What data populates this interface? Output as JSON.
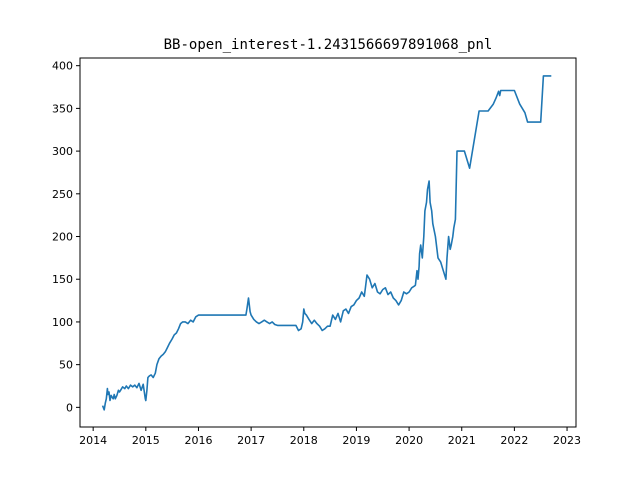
{
  "chart_data": {
    "type": "line",
    "title": "BB-open_interest-1.2431566697891068_pnl",
    "xlabel": "",
    "ylabel": "",
    "x_ticks": [
      "2014",
      "2015",
      "2016",
      "2017",
      "2018",
      "2019",
      "2020",
      "2021",
      "2022",
      "2023"
    ],
    "y_ticks": [
      "0",
      "50",
      "100",
      "150",
      "200",
      "250",
      "300",
      "350",
      "400"
    ],
    "xlim": [
      2013.75,
      2023.17
    ],
    "ylim": [
      -23,
      409
    ],
    "grid": false,
    "legend": "none",
    "line_color": "#1f77b4",
    "series": [
      {
        "x": [
          2014.18,
          2014.21,
          2014.23,
          2014.25,
          2014.27,
          2014.28,
          2014.3,
          2014.32,
          2014.34,
          2014.36,
          2014.38,
          2014.4,
          2014.42,
          2014.45,
          2014.48,
          2014.5,
          2014.53,
          2014.56,
          2014.6,
          2014.63,
          2014.67,
          2014.71,
          2014.75,
          2014.79,
          2014.83,
          2014.87,
          2014.91,
          2014.95,
          2014.99,
          2015.0,
          2015.02,
          2015.04,
          2015.07,
          2015.1,
          2015.14,
          2015.18,
          2015.21,
          2015.25,
          2015.29,
          2015.33,
          2015.37,
          2015.41,
          2015.45,
          2015.5,
          2015.54,
          2015.58,
          2015.62,
          2015.66,
          2015.7,
          2015.75,
          2015.8,
          2015.85,
          2015.9,
          2015.95,
          2016.0,
          2016.05,
          2016.9,
          2016.92,
          2016.95,
          2016.98,
          2017.0,
          2017.05,
          2017.1,
          2017.15,
          2017.2,
          2017.25,
          2017.3,
          2017.35,
          2017.4,
          2017.45,
          2017.5,
          2017.55,
          2017.6,
          2017.65,
          2017.7,
          2017.75,
          2017.8,
          2017.85,
          2017.9,
          2017.95,
          2017.98,
          2018.0,
          2018.02,
          2018.05,
          2018.1,
          2018.15,
          2018.2,
          2018.25,
          2018.3,
          2018.35,
          2018.4,
          2018.45,
          2018.5,
          2018.55,
          2018.6,
          2018.65,
          2018.7,
          2018.75,
          2018.8,
          2018.85,
          2018.9,
          2018.95,
          2019.0,
          2019.05,
          2019.1,
          2019.15,
          2019.17,
          2019.2,
          2019.25,
          2019.3,
          2019.35,
          2019.4,
          2019.45,
          2019.5,
          2019.55,
          2019.6,
          2019.65,
          2019.7,
          2019.75,
          2019.8,
          2019.85,
          2019.9,
          2019.95,
          2020.0,
          2020.05,
          2020.1,
          2020.12,
          2020.15,
          2020.17,
          2020.19,
          2020.2,
          2020.22,
          2020.25,
          2020.28,
          2020.3,
          2020.33,
          2020.35,
          2020.38,
          2020.4,
          2020.43,
          2020.45,
          2020.5,
          2020.55,
          2020.6,
          2020.65,
          2020.7,
          2020.72,
          2020.75,
          2020.78,
          2020.8,
          2020.83,
          2020.85,
          2020.88,
          2020.91,
          2020.95,
          2021.0,
          2021.05,
          2021.1,
          2021.15,
          2021.33,
          2021.35,
          2021.4,
          2021.5,
          2021.6,
          2021.65,
          2021.7,
          2021.72,
          2021.74,
          2021.8,
          2021.9,
          2022.0,
          2022.1,
          2022.2,
          2022.25,
          2022.3,
          2022.4,
          2022.5,
          2022.55,
          2022.7
        ],
        "y": [
          2,
          -3,
          5,
          10,
          22,
          15,
          18,
          8,
          14,
          12,
          10,
          15,
          10,
          14,
          20,
          18,
          21,
          24,
          22,
          25,
          22,
          26,
          24,
          26,
          23,
          28,
          20,
          27,
          10,
          8,
          20,
          35,
          37,
          38,
          35,
          40,
          50,
          57,
          60,
          62,
          65,
          70,
          75,
          80,
          85,
          87,
          92,
          98,
          100,
          100,
          98,
          102,
          100,
          106,
          108,
          108,
          108,
          115,
          128,
          112,
          108,
          103,
          100,
          98,
          100,
          102,
          100,
          98,
          100,
          97,
          96,
          96,
          96,
          96,
          96,
          96,
          96,
          96,
          90,
          92,
          100,
          115,
          110,
          108,
          103,
          98,
          102,
          98,
          95,
          90,
          92,
          95,
          95,
          108,
          103,
          110,
          100,
          113,
          115,
          110,
          118,
          120,
          125,
          128,
          135,
          130,
          140,
          155,
          150,
          140,
          145,
          135,
          133,
          138,
          140,
          132,
          135,
          128,
          125,
          120,
          125,
          135,
          133,
          135,
          140,
          142,
          143,
          160,
          150,
          165,
          180,
          190,
          175,
          200,
          230,
          240,
          255,
          265,
          240,
          230,
          215,
          200,
          175,
          170,
          160,
          150,
          175,
          200,
          185,
          190,
          200,
          210,
          220,
          300,
          300,
          300,
          300,
          290,
          280,
          347,
          347,
          347,
          347,
          355,
          362,
          370,
          365,
          371,
          371,
          371,
          371,
          355,
          345,
          334,
          334,
          334,
          334,
          388,
          388
        ]
      }
    ]
  }
}
